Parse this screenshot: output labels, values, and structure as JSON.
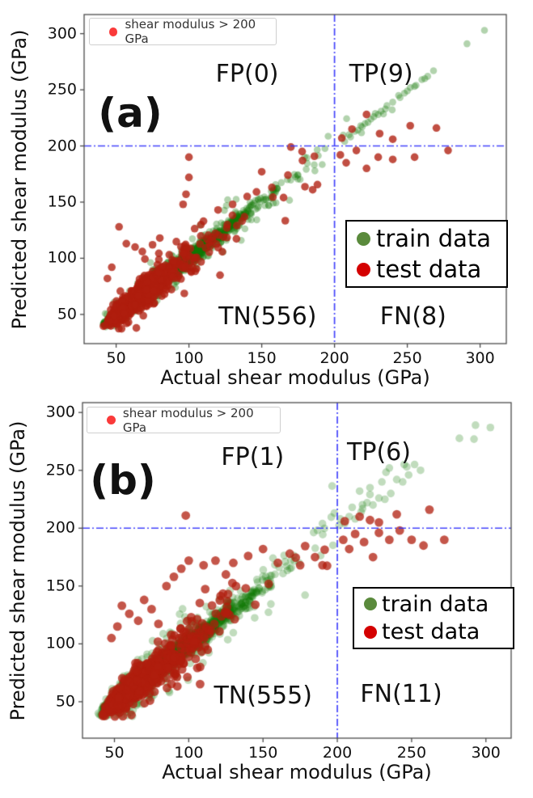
{
  "figure_title": "",
  "chart_data": [
    {
      "type": "scatter",
      "panel_label": "(a)",
      "xlabel": "Actual shear modulus (GPa)",
      "ylabel": "Predicted shear modulus (GPa)",
      "x_ticks": [
        50,
        100,
        150,
        200,
        250,
        300
      ],
      "y_ticks": [
        50,
        100,
        150,
        200,
        250,
        300
      ],
      "xlim": [
        28,
        318
      ],
      "ylim": [
        24,
        317
      ],
      "grid": false,
      "threshold": {
        "x": 200,
        "y": 200,
        "color": "#3030fc",
        "style": "dash-dot"
      },
      "top_legend": {
        "label": "shear modulus > 200 GPa",
        "marker_color": "#fa3a3a"
      },
      "legend": {
        "position": "center-right",
        "items": [
          {
            "label": "train data",
            "marker_color": "#5a8a3c"
          },
          {
            "label": "test data",
            "marker_color": "#d40000"
          }
        ]
      },
      "annotations": [
        {
          "label": "FP(0)",
          "x": 140,
          "y": 264
        },
        {
          "label": "TP(9)",
          "x": 232,
          "y": 264
        },
        {
          "label": "TN(556)",
          "x": 154,
          "y": 48
        },
        {
          "label": "FN(8)",
          "x": 254,
          "y": 48
        }
      ],
      "series": [
        {
          "name": "train data",
          "color": "#117700",
          "alpha": 0.32,
          "radius": 4.3,
          "n": 5200,
          "seed": 42,
          "dist": {
            "base": 36,
            "mu": 3.45,
            "sigma": 0.55,
            "max": 308
          },
          "noise": {
            "base": 1.2,
            "scale": 0.03,
            "wide_frac": 0.08,
            "wide_mult": 3,
            "cap": 45
          },
          "floor": 37,
          "fp_clamp": false,
          "extra_points": [
            [
              207,
              204
            ],
            [
              210,
              210
            ],
            [
              214,
              213
            ],
            [
              218,
              218
            ],
            [
              221,
              220
            ],
            [
              225,
              224
            ],
            [
              228,
              229
            ],
            [
              232,
              231
            ],
            [
              236,
              236
            ],
            [
              240,
              239
            ],
            [
              244,
              245
            ],
            [
              248,
              247
            ],
            [
              252,
              252
            ],
            [
              256,
              254
            ],
            [
              260,
              259
            ],
            [
              264,
              262
            ],
            [
              268,
              267
            ],
            [
              291,
              291
            ],
            [
              303,
              303
            ],
            [
              211,
              208
            ],
            [
              216,
              214
            ],
            [
              219,
              217
            ],
            [
              223,
              221
            ],
            [
              227,
              226
            ],
            [
              230,
              228
            ],
            [
              235,
              233
            ],
            [
              245,
              243
            ],
            [
              250,
              249
            ],
            [
              255,
              253
            ],
            [
              262,
              260
            ]
          ]
        },
        {
          "name": "test data",
          "color": "#b01e0e",
          "alpha": 0.78,
          "radius": 4.8,
          "n": 575,
          "seed": 7,
          "dist": {
            "base": 36,
            "mu": 3.45,
            "sigma": 0.55,
            "max": 195
          },
          "noise": {
            "base": 3.0,
            "scale": 0.115,
            "wide_frac": 0.1,
            "wide_mult": 1.8,
            "cap": 42
          },
          "floor": 37,
          "fp_clamp": true,
          "extra_points": [
            [
              100,
              190
            ],
            [
              100,
              172
            ],
            [
              98,
              157
            ],
            [
              96,
              148
            ],
            [
              52,
              128
            ],
            [
              57,
              113
            ],
            [
              63,
              110
            ],
            [
              68,
              106
            ],
            [
              75,
              112
            ],
            [
              80,
              118
            ],
            [
              47,
              92
            ],
            [
              44,
              82
            ],
            [
              150,
              177
            ],
            [
              157,
              163
            ],
            [
              165,
              154
            ],
            [
              170,
              199
            ],
            [
              178,
              187
            ],
            [
              185,
              161
            ],
            [
              168,
              174
            ],
            [
              140,
              155
            ],
            [
              130,
              148
            ],
            [
              120,
              143
            ],
            [
              110,
              133
            ],
            [
              205,
              207
            ],
            [
              212,
              215
            ],
            [
              222,
              228
            ],
            [
              231,
              211
            ],
            [
              240,
              206
            ],
            [
              252,
              218
            ],
            [
              270,
              216
            ],
            [
              204,
              192
            ],
            [
              208,
              185
            ],
            [
              215,
              196
            ],
            [
              222,
              180
            ],
            [
              230,
              190
            ],
            [
              240,
              188
            ],
            [
              255,
              190
            ],
            [
              278,
              196
            ]
          ]
        }
      ]
    },
    {
      "type": "scatter",
      "panel_label": "(b)",
      "xlabel": "Actual shear modulus (GPa)",
      "ylabel": "Predicted shear  modulus (GPa)",
      "x_ticks": [
        50,
        100,
        150,
        200,
        250,
        300
      ],
      "y_ticks": [
        50,
        100,
        150,
        200,
        250,
        300
      ],
      "xlim": [
        28.5,
        317
      ],
      "ylim": [
        18.5,
        308.5
      ],
      "grid": false,
      "threshold": {
        "x": 200,
        "y": 200,
        "color": "#3030fc",
        "style": "dash-dot"
      },
      "top_legend": {
        "label": "shear modulus > 200 GPa",
        "marker_color": "#fa3a3a"
      },
      "legend": {
        "position": "center-right",
        "items": [
          {
            "label": "train data",
            "marker_color": "#5a8a3c"
          },
          {
            "label": "test data",
            "marker_color": "#d40000"
          }
        ]
      },
      "annotations": [
        {
          "label": "FP(1)",
          "x": 143,
          "y": 261
        },
        {
          "label": "TP(6)",
          "x": 228,
          "y": 265
        },
        {
          "label": "TN(555)",
          "x": 150,
          "y": 55
        },
        {
          "label": "FN(11)",
          "x": 243,
          "y": 56
        }
      ],
      "series": [
        {
          "name": "train data",
          "color": "#117700",
          "alpha": 0.26,
          "radius": 4.8,
          "n": 5200,
          "seed": 1337,
          "dist": {
            "base": 36,
            "mu": 3.45,
            "sigma": 0.55,
            "max": 308
          },
          "noise": {
            "base": 1.6,
            "scale": 0.04,
            "wide_frac": 0.1,
            "wide_mult": 3,
            "cap": 45
          },
          "floor": 37,
          "fp_clamp": false,
          "extra_points": [
            [
              205,
              204
            ],
            [
              208,
              210
            ],
            [
              212,
              208
            ],
            [
              216,
              214
            ],
            [
              220,
              222
            ],
            [
              224,
              220
            ],
            [
              228,
              226
            ],
            [
              232,
              225
            ],
            [
              236,
              230
            ],
            [
              240,
              242
            ],
            [
              244,
              240
            ],
            [
              248,
              246
            ],
            [
              252,
              255
            ],
            [
              256,
              250
            ],
            [
              235,
              252
            ],
            [
              293,
              289
            ],
            [
              303,
              287
            ],
            [
              292,
              277
            ],
            [
              215,
              232
            ],
            [
              210,
              218
            ],
            [
              222,
              235
            ],
            [
              230,
              240
            ],
            [
              245,
              255
            ],
            [
              190,
              204
            ],
            [
              198,
              213
            ],
            [
              202,
              208
            ]
          ]
        },
        {
          "name": "test data",
          "color": "#b01e0e",
          "alpha": 0.75,
          "radius": 5.4,
          "n": 570,
          "seed": 99,
          "dist": {
            "base": 36,
            "mu": 3.45,
            "sigma": 0.55,
            "max": 195
          },
          "noise": {
            "base": 3.5,
            "scale": 0.13,
            "wide_frac": 0.1,
            "wide_mult": 1.8,
            "cap": 45
          },
          "floor": 37,
          "fp_clamp": true,
          "extra_points": [
            [
              98,
              211
            ],
            [
              205,
              206
            ],
            [
              215,
              210
            ],
            [
              222,
              207
            ],
            [
              240,
              212
            ],
            [
              262,
              216
            ],
            [
              228,
              205
            ],
            [
              204,
              190
            ],
            [
              208,
              182
            ],
            [
              212,
              195
            ],
            [
              218,
              188
            ],
            [
              224,
              175
            ],
            [
              228,
              196
            ],
            [
              235,
              190
            ],
            [
              242,
              198
            ],
            [
              250,
              190
            ],
            [
              258,
              185
            ],
            [
              272,
              190
            ],
            [
              55,
              133
            ],
            [
              60,
              126
            ],
            [
              66,
              120
            ],
            [
              70,
              138
            ],
            [
              75,
              130
            ],
            [
              85,
              150
            ],
            [
              95,
              165
            ],
            [
              100,
              172
            ],
            [
              110,
              168
            ],
            [
              118,
              172
            ],
            [
              125,
              160
            ],
            [
              52,
              115
            ],
            [
              48,
              105
            ],
            [
              90,
              158
            ],
            [
              130,
              170
            ],
            [
              140,
              176
            ],
            [
              150,
              182
            ],
            [
              160,
              170
            ],
            [
              168,
              178
            ],
            [
              175,
              168
            ],
            [
              185,
              175
            ],
            [
              190,
              168
            ]
          ]
        }
      ]
    }
  ]
}
